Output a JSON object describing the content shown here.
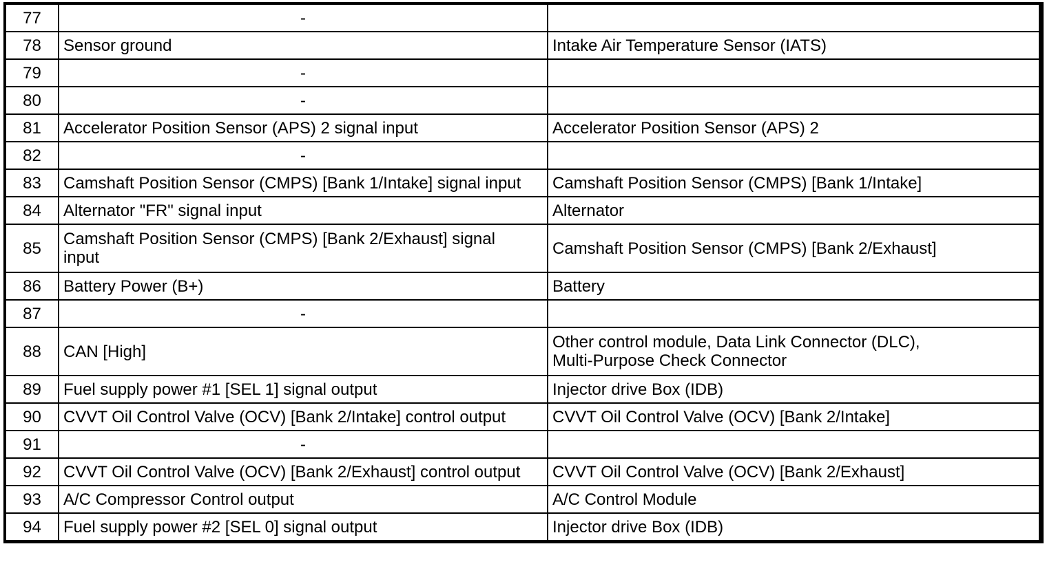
{
  "page": {
    "background_color": "#ffffff",
    "border_color": "#000000",
    "text_color": "#000000"
  },
  "table": {
    "rows": [
      {
        "pin": "77",
        "description": "-",
        "connected_to": ""
      },
      {
        "pin": "78",
        "description": "Sensor ground",
        "connected_to": "Intake Air Temperature Sensor (IATS)"
      },
      {
        "pin": "79",
        "description": "-",
        "connected_to": ""
      },
      {
        "pin": "80",
        "description": "-",
        "connected_to": ""
      },
      {
        "pin": "81",
        "description": "Accelerator Position Sensor (APS) 2 signal input",
        "connected_to": "Accelerator Position Sensor (APS) 2"
      },
      {
        "pin": "82",
        "description": "-",
        "connected_to": ""
      },
      {
        "pin": "83",
        "description": "Camshaft Position Sensor (CMPS) [Bank 1/Intake] signal input",
        "connected_to": "Camshaft Position Sensor (CMPS) [Bank 1/Intake]"
      },
      {
        "pin": "84",
        "description": "Alternator \"FR\" signal input",
        "connected_to": "Alternator"
      },
      {
        "pin": "85",
        "description": "Camshaft Position Sensor (CMPS) [Bank 2/Exhaust] signal\ninput",
        "connected_to": "Camshaft Position Sensor (CMPS) [Bank 2/Exhaust]"
      },
      {
        "pin": "86",
        "description": "Battery Power (B+)",
        "connected_to": "Battery"
      },
      {
        "pin": "87",
        "description": "-",
        "connected_to": ""
      },
      {
        "pin": "88",
        "description": "CAN [High]",
        "connected_to": "Other control module, Data Link Connector (DLC),\nMulti-Purpose Check Connector"
      },
      {
        "pin": "89",
        "description": "Fuel supply power #1 [SEL 1] signal output",
        "connected_to": "Injector drive Box (IDB)"
      },
      {
        "pin": "90",
        "description": "CVVT Oil Control Valve (OCV) [Bank 2/Intake] control output",
        "connected_to": "CVVT Oil Control Valve (OCV) [Bank 2/Intake]"
      },
      {
        "pin": "91",
        "description": "-",
        "connected_to": ""
      },
      {
        "pin": "92",
        "description": "CVVT Oil Control Valve (OCV) [Bank 2/Exhaust] control output",
        "connected_to": "CVVT Oil Control Valve (OCV) [Bank 2/Exhaust]"
      },
      {
        "pin": "93",
        "description": "A/C Compressor Control output",
        "connected_to": "A/C Control Module"
      },
      {
        "pin": "94",
        "description": "Fuel supply power #2 [SEL 0] signal output",
        "connected_to": "Injector drive Box (IDB)"
      }
    ]
  }
}
